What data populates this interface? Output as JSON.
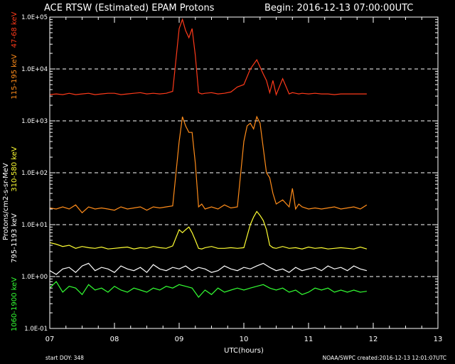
{
  "chart_data": {
    "type": "line",
    "title_left": "ACE RTSW (Estimated) EPAM Protons",
    "title_right": "Begin: 2016-12-13 07:00:00UTC",
    "xlabel": "UTC(hours)",
    "ylabel": "Protons/cm2-s-sr-MeV",
    "xlim": [
      7,
      13
    ],
    "ylim": [
      0.1,
      100000
    ],
    "yscale": "log",
    "x_ticks": [
      "07",
      "08",
      "09",
      "10",
      "11",
      "12",
      "13"
    ],
    "y_ticks": [
      "1.0E-01",
      "1.0E+00",
      "1.0E+01",
      "1.0E+02",
      "1.0E+03",
      "1.0E+04",
      "1.0E+05"
    ],
    "dashed_gridlines_at": [
      1,
      10,
      100,
      1000,
      10000
    ],
    "footer_left": "start DOY: 348",
    "footer_right": "NOAA/SWPC  created:2016-12-13 12:01:07UTC",
    "series": [
      {
        "name": "47-68 keV",
        "color": "#ff3a1a",
        "x": [
          7.0,
          7.1,
          7.2,
          7.3,
          7.4,
          7.5,
          7.6,
          7.7,
          7.8,
          7.9,
          8.0,
          8.1,
          8.2,
          8.3,
          8.4,
          8.5,
          8.6,
          8.7,
          8.8,
          8.9,
          9.0,
          9.05,
          9.1,
          9.15,
          9.2,
          9.25,
          9.3,
          9.35,
          9.4,
          9.5,
          9.6,
          9.7,
          9.8,
          9.9,
          10.0,
          10.1,
          10.2,
          10.3,
          10.35,
          10.4,
          10.45,
          10.5,
          10.6,
          10.7,
          10.75,
          10.8,
          10.85,
          10.9,
          11.0,
          11.1,
          11.2,
          11.3,
          11.4,
          11.5,
          11.6,
          11.7,
          11.8,
          11.9
        ],
        "values": [
          3200,
          3300,
          3200,
          3400,
          3200,
          3300,
          3400,
          3200,
          3300,
          3400,
          3400,
          3200,
          3300,
          3400,
          3500,
          3300,
          3400,
          3300,
          3400,
          3700,
          60000,
          90000,
          55000,
          40000,
          60000,
          18000,
          3500,
          3300,
          3400,
          3500,
          3300,
          3400,
          3600,
          4500,
          5000,
          10000,
          15000,
          8000,
          6000,
          3500,
          6000,
          3200,
          6500,
          3300,
          3500,
          3400,
          3300,
          3400,
          3300,
          3400,
          3300,
          3300,
          3200,
          3300,
          3300,
          3300,
          3300,
          3300
        ]
      },
      {
        "name": "115-195 keV",
        "color": "#ff8c1a",
        "x": [
          7.0,
          7.1,
          7.2,
          7.3,
          7.4,
          7.5,
          7.6,
          7.7,
          7.8,
          7.9,
          8.0,
          8.1,
          8.2,
          8.3,
          8.4,
          8.5,
          8.6,
          8.7,
          8.8,
          8.9,
          9.0,
          9.05,
          9.1,
          9.15,
          9.2,
          9.25,
          9.3,
          9.35,
          9.4,
          9.5,
          9.6,
          9.7,
          9.8,
          9.9,
          10.0,
          10.05,
          10.1,
          10.15,
          10.2,
          10.25,
          10.3,
          10.35,
          10.4,
          10.45,
          10.5,
          10.6,
          10.7,
          10.75,
          10.8,
          10.85,
          10.9,
          11.0,
          11.1,
          11.2,
          11.3,
          11.4,
          11.5,
          11.6,
          11.7,
          11.8,
          11.9
        ],
        "values": [
          21,
          20,
          22,
          20,
          24,
          17,
          22,
          20,
          21,
          20,
          19,
          22,
          20,
          21,
          22,
          19,
          22,
          21,
          22,
          23,
          400,
          1200,
          800,
          600,
          600,
          150,
          22,
          25,
          20,
          22,
          20,
          24,
          21,
          22,
          400,
          800,
          900,
          700,
          1200,
          900,
          300,
          100,
          80,
          40,
          25,
          30,
          22,
          50,
          20,
          25,
          22,
          20,
          21,
          20,
          21,
          22,
          20,
          21,
          22,
          20,
          24
        ]
      },
      {
        "name": "310-580 keV",
        "color": "#ffff33",
        "x": [
          7.0,
          7.1,
          7.2,
          7.3,
          7.4,
          7.5,
          7.6,
          7.7,
          7.8,
          7.9,
          8.0,
          8.1,
          8.2,
          8.3,
          8.4,
          8.5,
          8.6,
          8.7,
          8.8,
          8.9,
          9.0,
          9.05,
          9.1,
          9.15,
          9.2,
          9.25,
          9.3,
          9.35,
          9.4,
          9.5,
          9.6,
          9.7,
          9.8,
          9.9,
          10.0,
          10.1,
          10.15,
          10.2,
          10.25,
          10.3,
          10.35,
          10.4,
          10.45,
          10.5,
          10.6,
          10.7,
          10.8,
          10.9,
          11.0,
          11.1,
          11.2,
          11.3,
          11.4,
          11.5,
          11.6,
          11.7,
          11.8,
          11.9
        ],
        "values": [
          4.5,
          4.2,
          3.8,
          4.0,
          3.5,
          3.8,
          3.6,
          3.5,
          3.7,
          3.4,
          3.5,
          3.6,
          3.7,
          3.4,
          3.6,
          3.5,
          3.8,
          3.6,
          3.5,
          3.9,
          8,
          7,
          8,
          9,
          7,
          5,
          3.5,
          3.4,
          3.6,
          3.8,
          3.5,
          3.5,
          3.6,
          3.5,
          3.6,
          10,
          14,
          18,
          15,
          12,
          8,
          4,
          3.6,
          3.5,
          3.8,
          3.5,
          3.6,
          3.4,
          3.7,
          3.5,
          3.6,
          3.4,
          3.5,
          3.6,
          3.5,
          3.4,
          3.7,
          3.4
        ]
      },
      {
        "name": "795-1193 keV",
        "color": "#ffffff",
        "x": [
          7.0,
          7.1,
          7.2,
          7.3,
          7.4,
          7.5,
          7.6,
          7.7,
          7.8,
          7.9,
          8.0,
          8.1,
          8.2,
          8.3,
          8.4,
          8.5,
          8.6,
          8.7,
          8.8,
          8.9,
          9.0,
          9.1,
          9.2,
          9.3,
          9.4,
          9.5,
          9.6,
          9.7,
          9.8,
          9.9,
          10.0,
          10.1,
          10.2,
          10.3,
          10.4,
          10.5,
          10.6,
          10.7,
          10.8,
          10.9,
          11.0,
          11.1,
          11.2,
          11.3,
          11.4,
          11.5,
          11.6,
          11.7,
          11.8,
          11.9
        ],
        "values": [
          1.3,
          1.1,
          1.4,
          1.5,
          1.2,
          1.6,
          1.8,
          1.3,
          1.5,
          1.4,
          1.2,
          1.6,
          1.4,
          1.3,
          1.5,
          1.2,
          1.7,
          1.4,
          1.3,
          1.5,
          1.4,
          1.6,
          1.3,
          1.5,
          1.4,
          1.2,
          1.3,
          1.6,
          1.4,
          1.3,
          1.5,
          1.4,
          1.6,
          1.8,
          1.5,
          1.3,
          1.4,
          1.2,
          1.5,
          1.3,
          1.4,
          1.5,
          1.3,
          1.6,
          1.4,
          1.5,
          1.3,
          1.6,
          1.4,
          1.3
        ]
      },
      {
        "name": "1060-1900 keV",
        "color": "#33ff33",
        "x": [
          7.0,
          7.1,
          7.2,
          7.3,
          7.4,
          7.5,
          7.6,
          7.7,
          7.8,
          7.9,
          8.0,
          8.1,
          8.2,
          8.3,
          8.4,
          8.5,
          8.6,
          8.7,
          8.8,
          8.9,
          9.0,
          9.1,
          9.2,
          9.3,
          9.4,
          9.5,
          9.6,
          9.7,
          9.8,
          9.9,
          10.0,
          10.1,
          10.2,
          10.3,
          10.4,
          10.5,
          10.6,
          10.7,
          10.8,
          10.9,
          11.0,
          11.1,
          11.2,
          11.3,
          11.4,
          11.5,
          11.6,
          11.7,
          11.8,
          11.9
        ],
        "values": [
          0.6,
          0.8,
          0.5,
          0.65,
          0.6,
          0.45,
          0.7,
          0.55,
          0.6,
          0.5,
          0.65,
          0.55,
          0.5,
          0.6,
          0.55,
          0.5,
          0.6,
          0.55,
          0.65,
          0.6,
          0.7,
          0.65,
          0.6,
          0.4,
          0.55,
          0.45,
          0.6,
          0.5,
          0.55,
          0.6,
          0.55,
          0.6,
          0.65,
          0.7,
          0.6,
          0.55,
          0.6,
          0.5,
          0.55,
          0.45,
          0.5,
          0.6,
          0.55,
          0.6,
          0.5,
          0.55,
          0.5,
          0.55,
          0.5,
          0.52
        ]
      }
    ]
  }
}
